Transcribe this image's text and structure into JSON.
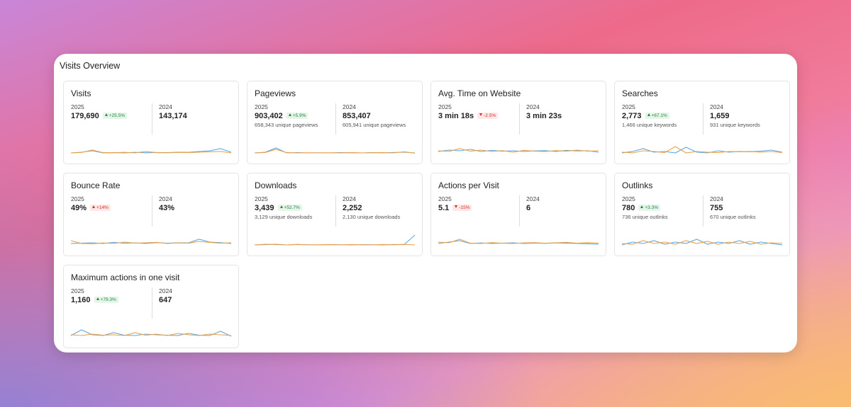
{
  "header": {
    "title": "Visits Overview"
  },
  "spark_ylim": [
    0,
    10
  ],
  "cards": [
    {
      "title": "Visits",
      "columns": [
        {
          "year": "2025",
          "value": "179,690",
          "badge": {
            "text": "+25.5%",
            "arrow": "up",
            "color": "#1e8e3e",
            "background": "#e6f4ea"
          }
        },
        {
          "year": "2024",
          "value": "143,174"
        }
      ],
      "lines": [
        {
          "color": "#5aa9e6",
          "values": [
            2,
            2.5,
            3.5,
            2,
            2.2,
            2,
            2.4,
            2.1,
            2.3,
            2.2,
            2.5,
            2.4,
            3,
            3.5,
            5,
            2.5
          ]
        },
        {
          "color": "#f0a040",
          "values": [
            2,
            2.3,
            4,
            2.2,
            2.1,
            2.4,
            2,
            3,
            2.2,
            2.1,
            2.3,
            2.2,
            2.5,
            2.8,
            3,
            2
          ]
        }
      ]
    },
    {
      "title": "Pageviews",
      "columns": [
        {
          "year": "2025",
          "value": "903,402",
          "badge": {
            "text": "+5.9%",
            "arrow": "up",
            "color": "#1e8e3e",
            "background": "#e6f4ea"
          },
          "sub": "658,343 unique pageviews"
        },
        {
          "year": "2024",
          "value": "853,407",
          "sub": "605,941 unique pageviews"
        }
      ],
      "lines": [
        {
          "color": "#5aa9e6",
          "values": [
            2,
            2.5,
            5.5,
            2,
            2.2,
            2,
            2.1,
            2,
            2.2,
            2.1,
            2,
            2.2,
            2.1,
            2.3,
            2.5,
            2
          ]
        },
        {
          "color": "#f0a040",
          "values": [
            2,
            2.3,
            4.5,
            2.2,
            2,
            2.1,
            2,
            2.1,
            2,
            2.2,
            2,
            2.1,
            2.2,
            2,
            2.8,
            1.8
          ]
        }
      ]
    },
    {
      "title": "Avg. Time on Website",
      "columns": [
        {
          "year": "2025",
          "value": "3 min 18s",
          "badge": {
            "text": "-2.5%",
            "arrow": "down",
            "color": "#d93025",
            "background": "#fce8e6"
          }
        },
        {
          "year": "2024",
          "value": "3 min 23s"
        }
      ],
      "lines": [
        {
          "color": "#5aa9e6",
          "values": [
            3,
            4,
            3.5,
            4.5,
            3,
            3.8,
            3.2,
            3.5,
            3,
            3.4,
            3.6,
            3,
            3.8,
            3.4,
            3.5,
            2.5
          ]
        },
        {
          "color": "#f0a040",
          "values": [
            3.5,
            3,
            5,
            3.2,
            4,
            3,
            3.6,
            2.5,
            3.8,
            3.2,
            3,
            3.6,
            3.2,
            4,
            3.2,
            3.5
          ]
        }
      ]
    },
    {
      "title": "Searches",
      "columns": [
        {
          "year": "2025",
          "value": "2,773",
          "badge": {
            "text": "+67.1%",
            "arrow": "up",
            "color": "#1e8e3e",
            "background": "#e6f4ea"
          },
          "sub": "1,466 unique keywords"
        },
        {
          "year": "2024",
          "value": "1,659",
          "sub": "931 unique keywords"
        }
      ],
      "lines": [
        {
          "color": "#5aa9e6",
          "values": [
            2,
            3,
            5,
            2.5,
            3,
            2,
            6,
            2.5,
            2,
            3.5,
            2.5,
            3,
            2.8,
            3.2,
            4,
            2.5
          ]
        },
        {
          "color": "#f0a040",
          "values": [
            2.5,
            2,
            3.5,
            3,
            2.2,
            6.5,
            2,
            3,
            2.5,
            2.2,
            3,
            2.8,
            3,
            2.5,
            3,
            2.2
          ]
        }
      ]
    },
    {
      "title": "Bounce Rate",
      "columns": [
        {
          "year": "2025",
          "value": "49%",
          "badge": {
            "text": "+14%",
            "arrow": "up",
            "color": "#d93025",
            "background": "#fce8e6"
          }
        },
        {
          "year": "2024",
          "value": "43%"
        }
      ],
      "lines": [
        {
          "color": "#5aa9e6",
          "values": [
            3,
            3.2,
            3.5,
            3,
            3.8,
            3.2,
            3.4,
            3,
            3.6,
            3.2,
            3.5,
            3.4,
            6,
            4,
            3.6,
            3
          ]
        },
        {
          "color": "#f0a040",
          "values": [
            5,
            3,
            2.8,
            3.4,
            3,
            4,
            3.2,
            3.5,
            3.8,
            3,
            3.4,
            3.2,
            4.5,
            3.8,
            3.2,
            3.5
          ]
        }
      ]
    },
    {
      "title": "Downloads",
      "columns": [
        {
          "year": "2025",
          "value": "3,439",
          "badge": {
            "text": "+52.7%",
            "arrow": "up",
            "color": "#1e8e3e",
            "background": "#e6f4ea"
          },
          "sub": "3,129 unique downloads"
        },
        {
          "year": "2024",
          "value": "2,252",
          "sub": "2,130 unique downloads"
        }
      ],
      "lines": [
        {
          "color": "#5aa9e6",
          "values": [
            2,
            2.2,
            2.5,
            2,
            2.3,
            2.1,
            2,
            2.2,
            2.1,
            2,
            2.2,
            2.1,
            2,
            2.3,
            2.2,
            9
          ]
        },
        {
          "color": "#f0a040",
          "values": [
            2,
            2.5,
            2.2,
            2,
            2.4,
            2,
            2.1,
            2.3,
            2,
            2.2,
            2.1,
            2,
            2.3,
            2.1,
            2.4,
            2
          ]
        }
      ]
    },
    {
      "title": "Actions per Visit",
      "columns": [
        {
          "year": "2025",
          "value": "5.1",
          "badge": {
            "text": "-15%",
            "arrow": "down",
            "color": "#d93025",
            "background": "#fce8e6"
          }
        },
        {
          "year": "2024",
          "value": "6"
        }
      ],
      "lines": [
        {
          "color": "#5aa9e6",
          "values": [
            3,
            4,
            5,
            3,
            3.4,
            3,
            3.2,
            3.5,
            3,
            3.3,
            3.1,
            3.4,
            3.2,
            3,
            2.8,
            2.5
          ]
        },
        {
          "color": "#f0a040",
          "values": [
            4,
            3.5,
            6,
            3.2,
            3,
            3.6,
            3.2,
            3,
            3.4,
            3.6,
            3.2,
            3.5,
            3.8,
            3.2,
            3.6,
            3.2
          ]
        }
      ]
    },
    {
      "title": "Outlinks",
      "columns": [
        {
          "year": "2025",
          "value": "780",
          "badge": {
            "text": "+3.3%",
            "arrow": "up",
            "color": "#1e8e3e",
            "background": "#e6f4ea"
          },
          "sub": "736 unique outlinks"
        },
        {
          "year": "2024",
          "value": "755",
          "sub": "670 unique outlinks"
        }
      ],
      "lines": [
        {
          "color": "#5aa9e6",
          "values": [
            2,
            4,
            3,
            5,
            2.5,
            4,
            3,
            6,
            2.5,
            4,
            3,
            5,
            2.5,
            4,
            3,
            2
          ]
        },
        {
          "color": "#f0a040",
          "values": [
            3,
            2.5,
            5,
            3,
            4,
            2.5,
            5,
            3,
            4.5,
            2.5,
            4,
            3,
            4.5,
            2.5,
            3.5,
            3
          ]
        }
      ]
    },
    {
      "title": "Maximum actions in one visit",
      "columns": [
        {
          "year": "2025",
          "value": "1,160",
          "badge": {
            "text": "+79.3%",
            "arrow": "up",
            "color": "#1e8e3e",
            "background": "#e6f4ea"
          }
        },
        {
          "year": "2024",
          "value": "647"
        }
      ],
      "lines": [
        {
          "color": "#5aa9e6",
          "values": [
            3,
            7,
            3.5,
            3,
            5,
            3.2,
            3,
            4,
            3.5,
            3.2,
            3,
            4.5,
            3.2,
            3,
            6,
            2.5
          ]
        },
        {
          "color": "#f0a040",
          "values": [
            3.5,
            3,
            4,
            3.2,
            3.5,
            3,
            5,
            3.2,
            4,
            3,
            4.5,
            3.5,
            3,
            4,
            3.5,
            3
          ]
        }
      ]
    }
  ]
}
